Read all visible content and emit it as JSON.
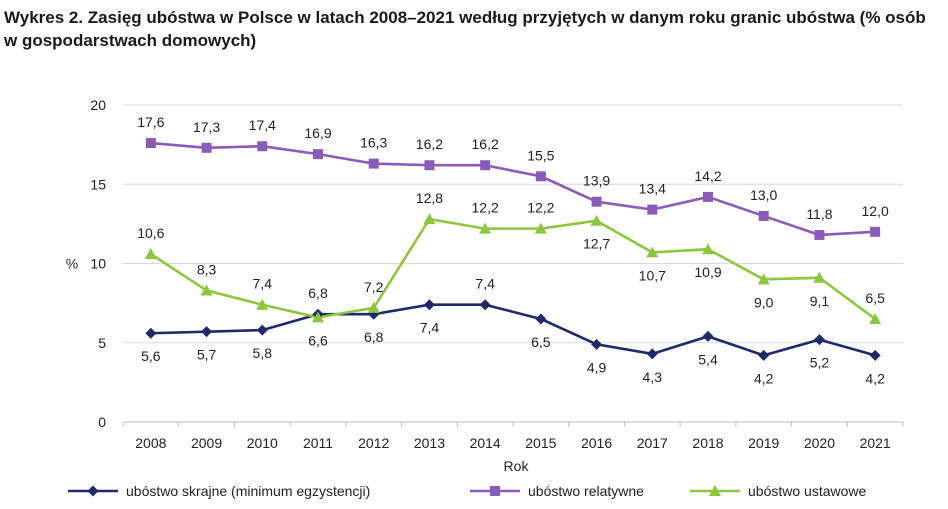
{
  "title": "Wykres 2. Zasięg ubóstwa w Polsce w latach 2008–2021 według przyjętych w danym roku granic ubóstwa (% osób w gospodarstwach domowych)",
  "chart_data": {
    "type": "line",
    "title": "Wykres 2. Zasięg ubóstwa w Polsce w latach 2008–2021 według przyjętych w danym roku granic ubóstwa (% osób w gospodarstwach domowych)",
    "xlabel": "Rok",
    "ylabel": "%",
    "ylim": [
      0,
      20
    ],
    "yticks": [
      "0",
      "5",
      "10",
      "15",
      "20"
    ],
    "grid": "horizontal",
    "legend_position": "bottom",
    "categories": [
      "2008",
      "2009",
      "2010",
      "2011",
      "2012",
      "2013",
      "2014",
      "2015",
      "2016",
      "2017",
      "2018",
      "2019",
      "2020",
      "2021"
    ],
    "series": [
      {
        "name": "ubóstwo skrajne (minimum egzystencji)",
        "color": "#1f2a6b",
        "marker": "diamond",
        "values": [
          5.6,
          5.7,
          5.8,
          6.8,
          6.8,
          7.4,
          7.4,
          6.5,
          4.9,
          4.3,
          5.4,
          4.2,
          5.2,
          4.2
        ],
        "labels": [
          "5,6",
          "5,7",
          "5,8",
          "6,8",
          "6,8",
          "7,4",
          "7,4",
          "6,5",
          "4,9",
          "4,3",
          "5,4",
          "4,2",
          "5,2",
          "4,2"
        ]
      },
      {
        "name": "ubóstwo relatywne",
        "color": "#8a5bb8",
        "marker": "square",
        "values": [
          17.6,
          17.3,
          17.4,
          16.9,
          16.3,
          16.2,
          16.2,
          15.5,
          13.9,
          13.4,
          14.2,
          13.0,
          11.8,
          12.0
        ],
        "labels": [
          "17,6",
          "17,3",
          "17,4",
          "16,9",
          "16,3",
          "16,2",
          "16,2",
          "15,5",
          "13,9",
          "13,4",
          "14,2",
          "13,0",
          "11,8",
          "12,0"
        ]
      },
      {
        "name": "ubóstwo ustawowe",
        "color": "#8dc63f",
        "marker": "triangle",
        "values": [
          10.6,
          8.3,
          7.4,
          6.6,
          7.2,
          12.8,
          12.2,
          12.2,
          12.7,
          10.7,
          10.9,
          9.0,
          9.1,
          6.5
        ],
        "labels": [
          "10,6",
          "8,3",
          "7,4",
          "6,6",
          "7,2",
          "12,8",
          "12,2",
          "12,2",
          "12,7",
          "10,7",
          "10,9",
          "9,0",
          "9,1",
          "6,5"
        ]
      }
    ]
  }
}
